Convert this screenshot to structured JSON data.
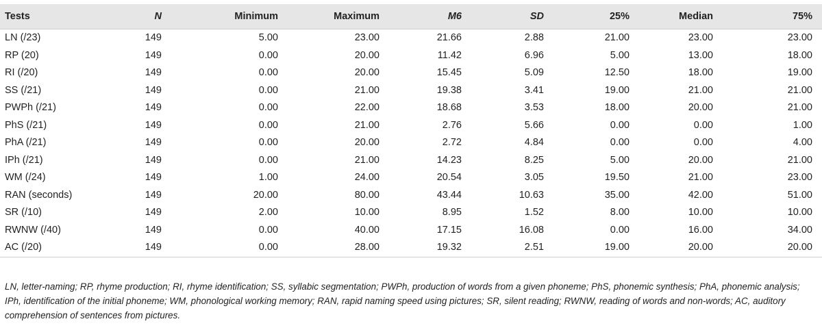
{
  "table": {
    "headers": [
      "Tests",
      "N",
      "Minimum",
      "Maximum",
      "M6",
      "SD",
      "25%",
      "Median",
      "75%"
    ],
    "rows": [
      [
        "LN (/23)",
        "149",
        "5.00",
        "23.00",
        "21.66",
        "2.88",
        "21.00",
        "23.00",
        "23.00"
      ],
      [
        "RP (20)",
        "149",
        "0.00",
        "20.00",
        "11.42",
        "6.96",
        "5.00",
        "13.00",
        "18.00"
      ],
      [
        "RI (/20)",
        "149",
        "0.00",
        "20.00",
        "15.45",
        "5.09",
        "12.50",
        "18.00",
        "19.00"
      ],
      [
        "SS (/21)",
        "149",
        "0.00",
        "21.00",
        "19.38",
        "3.41",
        "19.00",
        "21.00",
        "21.00"
      ],
      [
        "PWPh (/21)",
        "149",
        "0.00",
        "22.00",
        "18.68",
        "3.53",
        "18.00",
        "20.00",
        "21.00"
      ],
      [
        "PhS (/21)",
        "149",
        "0.00",
        "21.00",
        "2.76",
        "5.66",
        "0.00",
        "0.00",
        "1.00"
      ],
      [
        "PhA (/21)",
        "149",
        "0.00",
        "20.00",
        "2.72",
        "4.84",
        "0.00",
        "0.00",
        "4.00"
      ],
      [
        "IPh (/21)",
        "149",
        "0.00",
        "21.00",
        "14.23",
        "8.25",
        "5.00",
        "20.00",
        "21.00"
      ],
      [
        "WM (/24)",
        "149",
        "1.00",
        "24.00",
        "20.54",
        "3.05",
        "19.50",
        "21.00",
        "23.00"
      ],
      [
        "RAN (seconds)",
        "149",
        "20.00",
        "80.00",
        "43.44",
        "10.63",
        "35.00",
        "42.00",
        "51.00"
      ],
      [
        "SR (/10)",
        "149",
        "2.00",
        "10.00",
        "8.95",
        "1.52",
        "8.00",
        "10.00",
        "10.00"
      ],
      [
        "RWNW (/40)",
        "149",
        "0.00",
        "40.00",
        "17.15",
        "16.08",
        "0.00",
        "16.00",
        "34.00"
      ],
      [
        "AC (/20)",
        "149",
        "0.00",
        "28.00",
        "19.32",
        "2.51",
        "19.00",
        "20.00",
        "20.00"
      ]
    ]
  },
  "footnote": "LN, letter-naming; RP, rhyme production; RI, rhyme identification; SS, syllabic segmentation; PWPh, production of words from a given phoneme; PhS, phonemic synthesis; PhA, phonemic analysis; IPh, identification of the initial phoneme; WM, phonological working memory; RAN, rapid naming speed using pictures; SR, silent reading; RWNW, reading of words and non-words; AC, auditory comprehension of sentences from pictures."
}
